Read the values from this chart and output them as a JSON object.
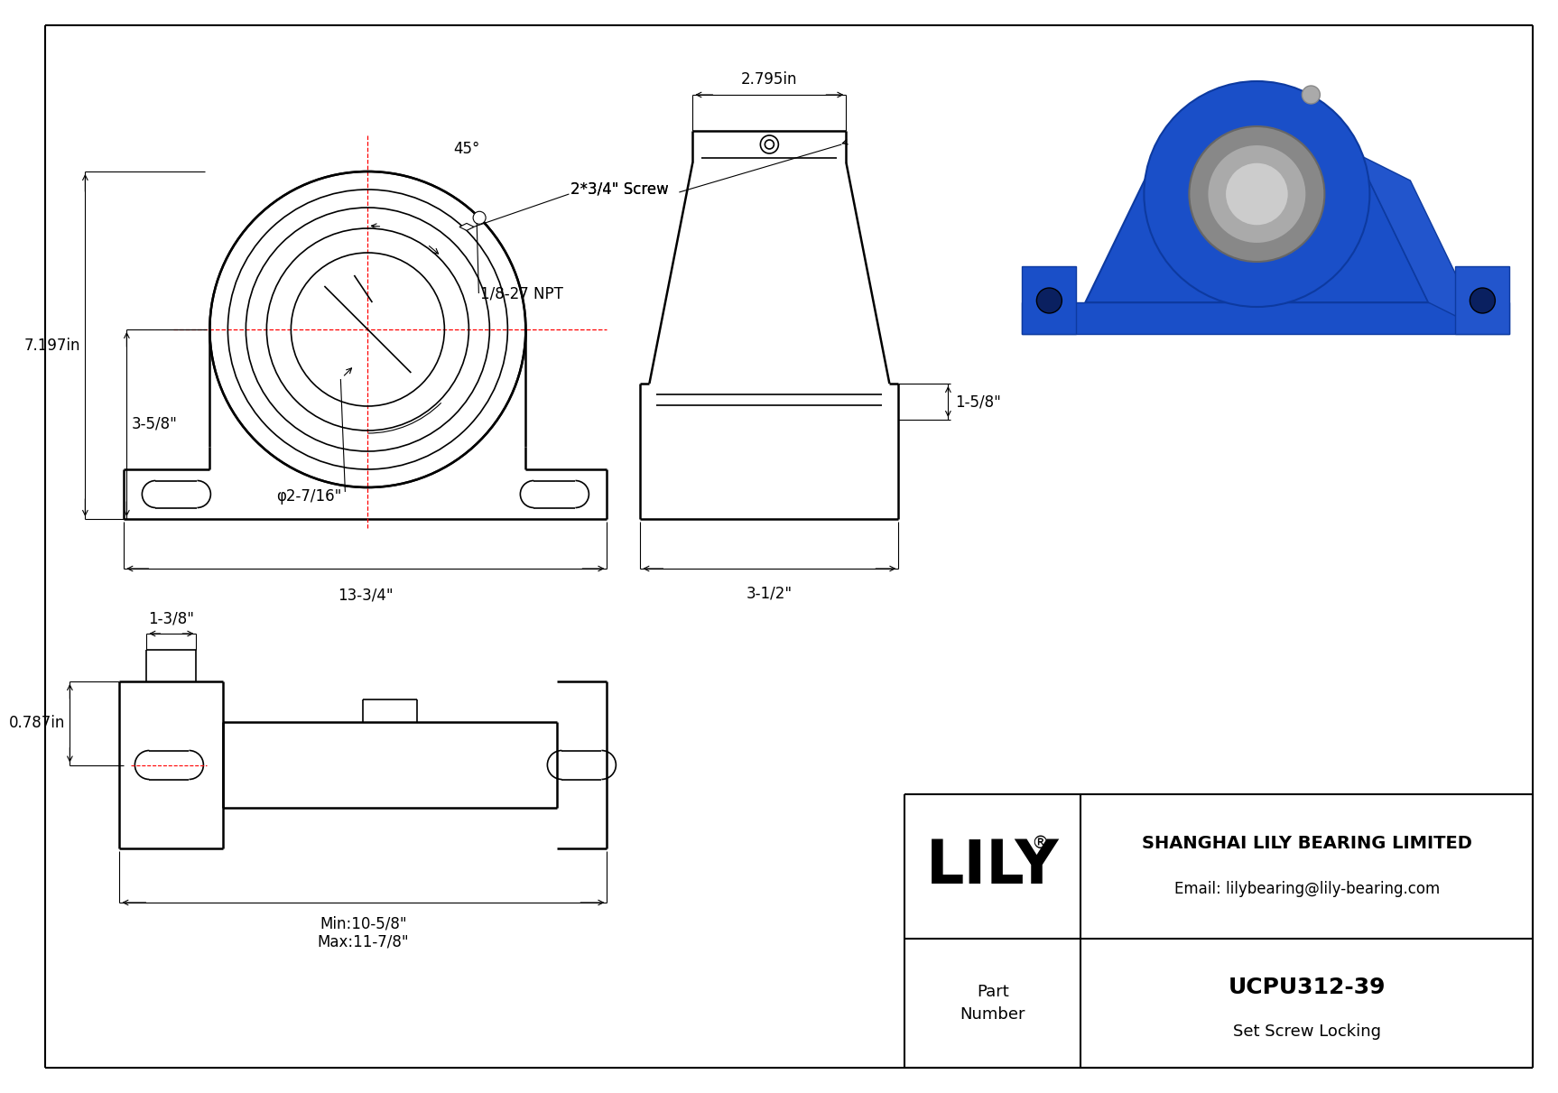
{
  "bg_color": "#ffffff",
  "title_company": "SHANGHAI LILY BEARING LIMITED",
  "title_email": "Email: lilybearing@lily-bearing.com",
  "part_number": "UCPU312-39",
  "part_type": "Set Screw Locking",
  "logo_text": "LILY",
  "dim_7197": "7.197in",
  "dim_358": "3-5/8\"",
  "dim_2795": "2.795in",
  "dim_134": "13-3/4\"",
  "dim_2716": "φ2-7/16\"",
  "dim_158": "1-5/8\"",
  "dim_312": "3-1/2\"",
  "dim_45": "45°",
  "dim_npt": "1/8-27 NPT",
  "dim_screw": "2*3/4\" Screw",
  "dim_138": "1-3/8\"",
  "dim_0787": "0.787in",
  "dim_min": "Min:10-5/8\"",
  "dim_max": "Max:11-7/8\""
}
